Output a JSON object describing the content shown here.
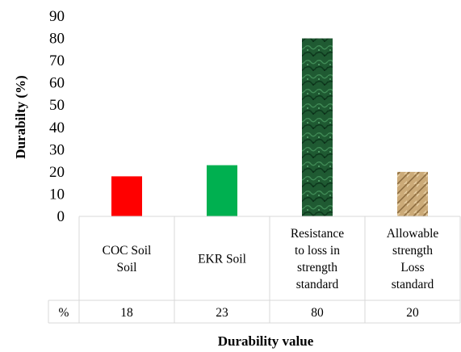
{
  "chart_data": {
    "type": "bar",
    "title": "",
    "xlabel": "Durability value",
    "ylabel": "Durabilty (%)",
    "ylim": [
      0,
      90
    ],
    "yticks": [
      0,
      10,
      20,
      30,
      40,
      50,
      60,
      70,
      80,
      90
    ],
    "grid": false,
    "categories": [
      [
        "COC Soil",
        "Soil"
      ],
      [
        "EKR Soil"
      ],
      [
        "Resistance",
        "to loss in",
        "strength",
        "standard"
      ],
      [
        "Allowable",
        "strength",
        "Loss",
        "standard"
      ]
    ],
    "values": [
      18,
      23,
      80,
      20
    ],
    "bar_colors": [
      "#ff0000",
      "#00b050",
      "#1f5c34",
      "#c8a876"
    ],
    "bar_fills": [
      "solid",
      "solid",
      "marble-green",
      "straw-texture"
    ],
    "data_table": {
      "row_label": "%",
      "values": [
        "18",
        "23",
        "80",
        "20"
      ]
    }
  }
}
